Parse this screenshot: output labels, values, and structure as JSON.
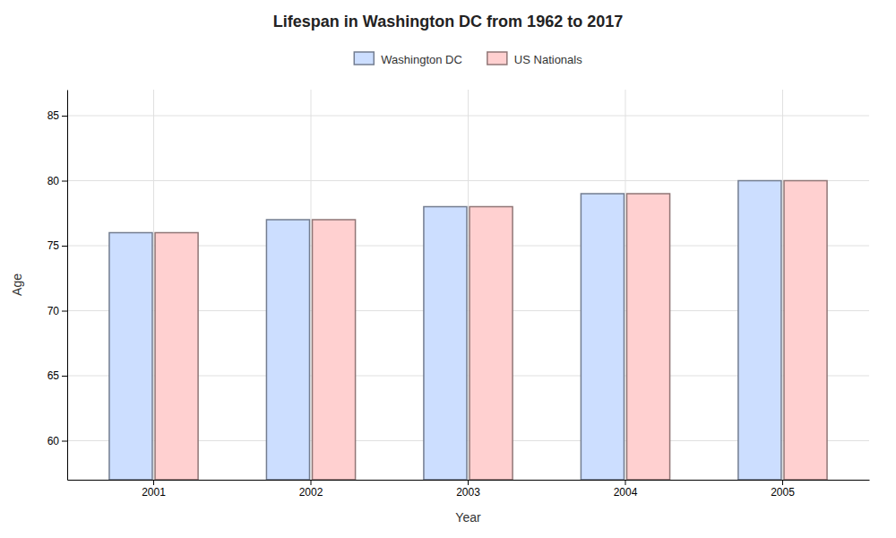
{
  "chart_data": {
    "type": "bar",
    "title": "Lifespan in Washington DC from 1962 to 2017",
    "xlabel": "Year",
    "ylabel": "Age",
    "categories": [
      "2001",
      "2002",
      "2003",
      "2004",
      "2005"
    ],
    "series": [
      {
        "name": "Washington DC",
        "color": "#ccdeff",
        "values": [
          76,
          77,
          78,
          79,
          80
        ]
      },
      {
        "name": "US Nationals",
        "color": "#ffd0d0",
        "values": [
          76,
          77,
          78,
          79,
          80
        ]
      }
    ],
    "ylim": [
      57,
      87
    ],
    "yticks": [
      60,
      65,
      70,
      75,
      80,
      85
    ],
    "grid": true,
    "legend": "top"
  }
}
